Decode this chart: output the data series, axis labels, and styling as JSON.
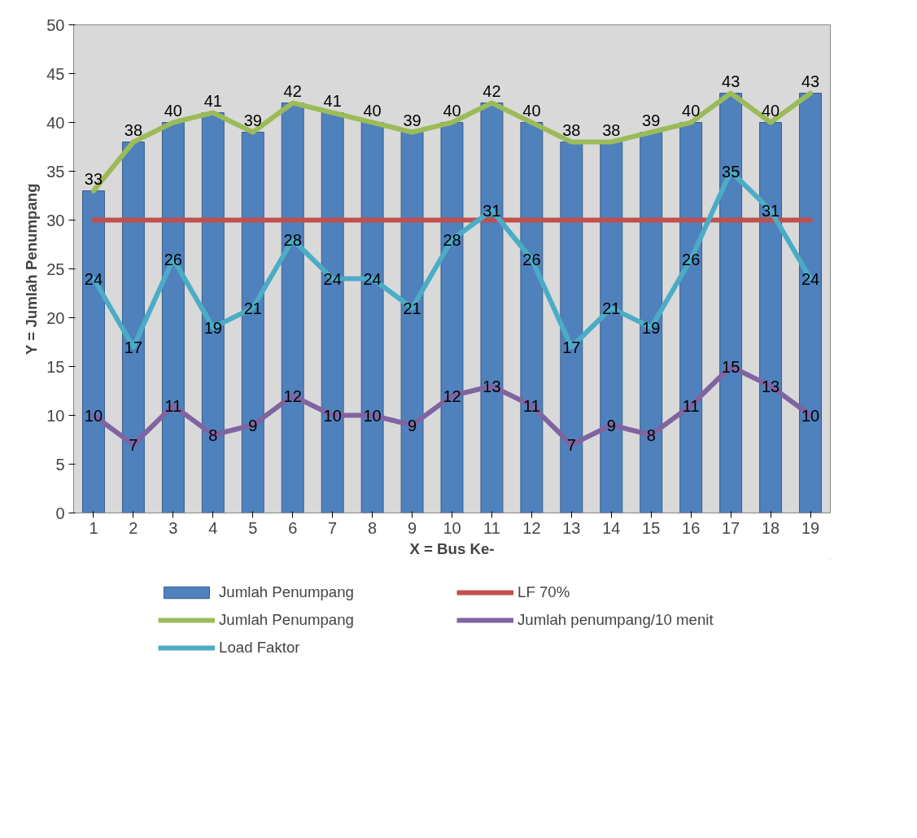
{
  "chart_data": {
    "type": "bar",
    "xlabel": "X = Bus Ke-",
    "ylabel": "Y = Jumlah Penumpang",
    "categories": [
      "1",
      "2",
      "3",
      "4",
      "5",
      "6",
      "7",
      "8",
      "9",
      "10",
      "11",
      "12",
      "13",
      "14",
      "15",
      "16",
      "17",
      "18",
      "19"
    ],
    "series": [
      {
        "name": "Jumlah Penumpang",
        "color": "#4f81bd",
        "values": [
          33,
          38,
          40,
          41,
          39,
          42,
          41,
          40,
          39,
          40,
          42,
          40,
          38,
          38,
          39,
          40,
          43,
          40,
          43
        ]
      },
      {
        "name": "LF 70%",
        "type": "line",
        "color": "#c0504d",
        "values": [
          30,
          30,
          30,
          30,
          30,
          30,
          30,
          30,
          30,
          30,
          30,
          30,
          30,
          30,
          30,
          30,
          30,
          30,
          30
        ]
      },
      {
        "name": "Jumlah Penumpang",
        "type": "line",
        "color": "#9bbb59",
        "data_labels": true,
        "values": [
          33,
          38,
          40,
          41,
          39,
          42,
          41,
          40,
          39,
          40,
          42,
          40,
          38,
          38,
          39,
          40,
          43,
          40,
          43
        ]
      },
      {
        "name": "Jumlah penumpang/10 menit",
        "type": "line",
        "color": "#8064a2",
        "data_labels": true,
        "values": [
          10,
          7,
          11,
          8,
          9,
          12,
          10,
          10,
          9,
          12,
          13,
          11,
          7,
          9,
          8,
          11,
          15,
          13,
          10
        ]
      },
      {
        "name": "Load Faktor",
        "type": "line",
        "color": "#4bacc6",
        "data_labels": true,
        "values": [
          24,
          17,
          26,
          19,
          21,
          28,
          24,
          24,
          21,
          28,
          31,
          26,
          17,
          21,
          19,
          26,
          35,
          31,
          24
        ]
      }
    ],
    "ylim": [
      0,
      50
    ],
    "yticks": [
      0,
      5,
      10,
      15,
      20,
      25,
      30,
      35,
      40,
      45,
      50
    ],
    "grid": false,
    "legend": "bottom",
    "line_style": "solid",
    "marker": "none"
  }
}
